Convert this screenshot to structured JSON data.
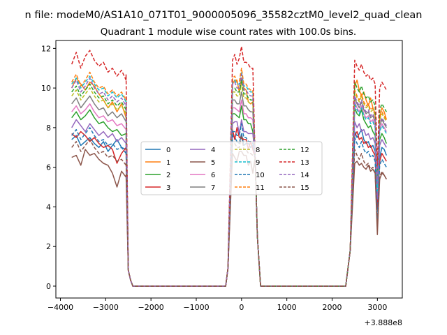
{
  "figure": {
    "suptitle": "n file: modeM0/AS1A10_071T01_9000005096_35582cztM0_level2_quad_clean"
  },
  "chart_data": {
    "type": "line",
    "title": "Quadrant 1 module wise count rates with 100.0s bins.",
    "xlabel": "",
    "ylabel": "",
    "x_offset_label": "+3.888e8",
    "xlim": [
      -4100,
      3550
    ],
    "ylim": [
      -0.6,
      12.4
    ],
    "x_ticks": [
      -4000,
      -3000,
      -2000,
      -1000,
      0,
      1000,
      2000,
      3000
    ],
    "x_tick_labels": [
      "−4000",
      "−3000",
      "−2000",
      "−1000",
      "0",
      "1000",
      "2000",
      "3000"
    ],
    "y_ticks": [
      0,
      2,
      4,
      6,
      8,
      10,
      12
    ],
    "y_tick_labels": [
      "0",
      "2",
      "4",
      "6",
      "8",
      "10",
      "12"
    ],
    "grid": false,
    "legend_placement": "center",
    "legend_columns": 4,
    "segments": [
      {
        "x": [
          -3750,
          -3650,
          -3550,
          -3450,
          -3350,
          -3250,
          -3150,
          -3050,
          -2950,
          -2850,
          -2750,
          -2650,
          -2550,
          -2450,
          -2350
        ],
        "gap_start": -2350
      },
      {
        "x": [
          -250,
          -200,
          -150,
          -100,
          -50,
          0,
          50,
          100,
          150,
          200,
          250,
          300,
          350,
          420
        ],
        "gap_start": 420
      },
      {
        "x": [
          2300,
          2400,
          2450,
          2500,
          2550,
          2600,
          2650,
          2700,
          2750,
          2800,
          2850,
          2900,
          2950,
          3000,
          3050,
          3100,
          3150,
          3200
        ],
        "gap_start": null
      }
    ],
    "series": [
      {
        "name": "0",
        "color": "#1f77b4",
        "dash": false,
        "level": [
          7.4,
          7.6,
          7.1,
          7.3,
          7.5,
          7.2,
          7.0,
          7.3,
          6.8,
          7.1,
          7.4,
          7.0,
          6.9,
          7.2
        ],
        "late": [
          7.8,
          7.5,
          7.7,
          7.9,
          7.4,
          7.2,
          7.3,
          7.0,
          7.1,
          6.8,
          4.2,
          6.5,
          7.0,
          6.9,
          6.6
        ]
      },
      {
        "name": "1",
        "color": "#ff7f0e",
        "dash": false,
        "level": [
          10.0,
          10.5,
          10.2,
          9.9,
          10.3,
          10.1,
          9.7,
          9.4,
          9.0,
          9.3,
          8.8,
          9.2,
          8.5,
          8.9
        ],
        "late": [
          10.1,
          10.4,
          9.9,
          9.6,
          9.8,
          9.4,
          9.1,
          9.5,
          9.0,
          8.7,
          5.1,
          8.6,
          9.0,
          8.8,
          8.4
        ]
      },
      {
        "name": "2",
        "color": "#2ca02c",
        "dash": false,
        "level": [
          8.5,
          8.8,
          8.4,
          8.6,
          8.9,
          8.5,
          8.2,
          8.3,
          8.0,
          7.8,
          7.9,
          7.6,
          7.7,
          7.5
        ],
        "late": [
          9.0,
          8.7,
          8.6,
          8.9,
          8.4,
          8.2,
          8.0,
          8.1,
          7.8,
          7.6,
          4.6,
          7.4,
          7.7,
          7.5,
          7.2
        ]
      },
      {
        "name": "3",
        "color": "#d62728",
        "dash": false,
        "level": [
          7.7,
          7.5,
          7.8,
          7.6,
          7.3,
          7.5,
          7.2,
          7.0,
          7.1,
          6.9,
          6.2,
          6.7,
          7.0,
          6.8
        ],
        "late": [
          7.6,
          7.8,
          7.4,
          7.5,
          7.2,
          7.3,
          7.0,
          7.1,
          6.8,
          6.6,
          3.9,
          6.3,
          6.7,
          6.5,
          6.3
        ]
      },
      {
        "name": "4",
        "color": "#9467bd",
        "dash": false,
        "level": [
          8.0,
          8.4,
          8.1,
          7.8,
          8.2,
          7.9,
          7.6,
          7.8,
          7.5,
          7.7,
          7.3,
          7.5,
          7.2,
          7.4
        ],
        "late": [
          8.3,
          8.0,
          8.2,
          7.8,
          7.9,
          7.6,
          7.7,
          7.4,
          7.5,
          7.2,
          4.4,
          7.1,
          7.4,
          7.2,
          7.0
        ]
      },
      {
        "name": "5",
        "color": "#8c564b",
        "dash": false,
        "level": [
          6.5,
          6.6,
          6.1,
          6.9,
          6.6,
          6.7,
          6.4,
          6.2,
          6.1,
          5.7,
          5.0,
          5.8,
          5.5,
          5.6
        ],
        "late": [
          6.2,
          6.3,
          6.1,
          6.2,
          6.0,
          5.9,
          6.1,
          5.8,
          5.9,
          5.7,
          2.6,
          5.4,
          5.7,
          5.6,
          5.4
        ]
      },
      {
        "name": "6",
        "color": "#e377c2",
        "dash": false,
        "level": [
          8.8,
          9.1,
          8.7,
          8.9,
          9.2,
          8.8,
          8.5,
          8.6,
          8.3,
          8.4,
          8.1,
          8.2,
          7.9,
          8.0
        ],
        "late": [
          9.3,
          9.0,
          8.8,
          9.1,
          8.7,
          8.5,
          8.6,
          8.3,
          8.4,
          8.1,
          4.9,
          7.9,
          8.2,
          8.0,
          7.8
        ]
      },
      {
        "name": "7",
        "color": "#7f7f7f",
        "dash": false,
        "level": [
          9.2,
          9.5,
          9.0,
          9.3,
          9.6,
          9.2,
          8.9,
          9.0,
          8.6,
          8.8,
          8.5,
          8.7,
          8.3,
          8.5
        ],
        "late": [
          9.5,
          9.2,
          9.0,
          9.3,
          8.9,
          8.7,
          8.8,
          8.5,
          8.6,
          8.3,
          5.0,
          8.1,
          8.4,
          8.2,
          8.0
        ]
      },
      {
        "name": "8",
        "color": "#bcbd22",
        "dash": true,
        "level": [
          9.6,
          9.9,
          9.4,
          9.7,
          10.0,
          9.6,
          9.3,
          9.4,
          9.0,
          9.2,
          8.9,
          9.1,
          8.7,
          8.9
        ],
        "late": [
          9.8,
          9.5,
          9.3,
          9.6,
          9.2,
          9.0,
          9.1,
          8.8,
          8.9,
          8.6,
          5.3,
          8.4,
          8.7,
          8.5,
          8.3
        ]
      },
      {
        "name": "9",
        "color": "#17becf",
        "dash": true,
        "level": [
          10.2,
          10.5,
          10.0,
          10.3,
          10.6,
          10.2,
          9.9,
          10.0,
          9.6,
          9.8,
          9.5,
          9.7,
          9.3,
          9.5
        ],
        "late": [
          9.2,
          8.9,
          8.7,
          9.0,
          8.6,
          8.4,
          8.5,
          8.2,
          8.3,
          8.0,
          4.8,
          7.8,
          8.1,
          7.9,
          7.7
        ]
      },
      {
        "name": "10",
        "color": "#1f77b4",
        "dash": true,
        "level": [
          7.6,
          7.9,
          7.4,
          7.7,
          8.0,
          7.6,
          7.3,
          7.4,
          7.1,
          7.2,
          6.9,
          7.0,
          6.7,
          6.8
        ],
        "late": [
          7.5,
          7.2,
          7.0,
          7.3,
          6.9,
          6.7,
          6.8,
          6.5,
          6.6,
          6.3,
          3.4,
          6.1,
          6.4,
          6.2,
          6.0
        ]
      },
      {
        "name": "11",
        "color": "#ff7f0e",
        "dash": true,
        "level": [
          10.3,
          10.7,
          10.1,
          10.4,
          10.8,
          10.3,
          10.0,
          10.1,
          9.7,
          9.9,
          9.6,
          9.8,
          9.4,
          9.6
        ],
        "late": [
          9.9,
          9.6,
          9.4,
          9.7,
          9.3,
          9.1,
          9.2,
          8.9,
          9.0,
          8.7,
          5.4,
          8.5,
          8.8,
          8.6,
          8.4
        ]
      },
      {
        "name": "12",
        "color": "#2ca02c",
        "dash": true,
        "level": [
          9.8,
          10.1,
          9.6,
          9.9,
          10.2,
          9.8,
          9.5,
          9.6,
          9.2,
          9.4,
          9.1,
          9.3,
          8.9,
          9.1
        ],
        "late": [
          10.3,
          10.0,
          9.8,
          10.1,
          9.7,
          9.5,
          9.6,
          9.3,
          9.4,
          9.1,
          5.6,
          8.9,
          9.2,
          9.0,
          8.8
        ]
      },
      {
        "name": "13",
        "color": "#d62728",
        "dash": true,
        "level": [
          11.2,
          11.8,
          11.0,
          11.6,
          11.9,
          11.4,
          11.1,
          11.3,
          10.8,
          11.0,
          10.6,
          10.9,
          10.4,
          10.7
        ],
        "late": [
          11.4,
          11.1,
          10.9,
          11.2,
          10.8,
          10.6,
          10.7,
          10.4,
          10.5,
          10.2,
          6.0,
          10.0,
          10.3,
          10.1,
          9.9
        ]
      },
      {
        "name": "14",
        "color": "#9467bd",
        "dash": true,
        "level": [
          10.0,
          10.4,
          9.8,
          10.1,
          10.5,
          10.0,
          9.7,
          9.8,
          9.4,
          9.6,
          9.3,
          9.5,
          9.1,
          9.3
        ],
        "late": [
          9.6,
          9.3,
          9.1,
          9.4,
          9.0,
          8.8,
          8.9,
          8.6,
          8.7,
          8.4,
          5.2,
          8.2,
          8.5,
          8.3,
          8.1
        ]
      },
      {
        "name": "15",
        "color": "#8c564b",
        "dash": true,
        "level": [
          7.0,
          7.3,
          6.8,
          7.1,
          7.4,
          7.0,
          6.7,
          6.8,
          6.5,
          6.6,
          6.3,
          6.4,
          6.1,
          6.2
        ],
        "late": [
          6.9,
          6.6,
          6.4,
          6.7,
          6.3,
          6.1,
          6.2,
          5.9,
          6.0,
          5.7,
          3.1,
          5.5,
          5.8,
          5.6,
          5.4
        ]
      }
    ]
  }
}
